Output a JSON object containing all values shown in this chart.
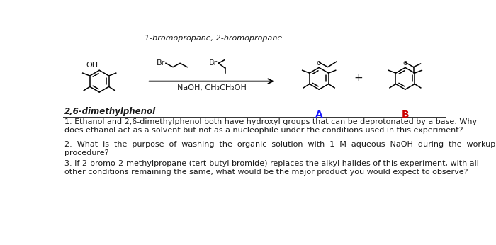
{
  "background_color": "#ffffff",
  "title_text": "1-bromopropane, 2-bromopropane",
  "label_26dmph": "2,6-dimethylphenol",
  "label_A": "A",
  "label_B": "B",
  "plus_sign": "+",
  "q1": "1. Ethanol and 2,6-dimethylphenol both have hydroxyl groups that can be deprotonated by a base. Why\ndoes ethanol act as a solvent but not as a nucleophile under the conditions used in this experiment?",
  "q2": "2.  What  is  the  purpose  of  washing  the  organic  solution  with  1  M  aqueous  NaOH  during  the  workup\nprocedure?",
  "q3": "3. If 2-bromo-2-methylpropane (tert-butyl bromide) replaces the alkyl halides of this experiment, with all\nother conditions remaining the same, what would be the major product you would expect to observe?",
  "color_A": "#1a1aff",
  "color_B": "#cc0000",
  "color_text": "#1a1a1a",
  "fontsize_title": 8.0,
  "fontsize_label": 8.5,
  "fontsize_questions": 8.0,
  "reagent_naoh": "NaOH, CH₃CH₂OH"
}
